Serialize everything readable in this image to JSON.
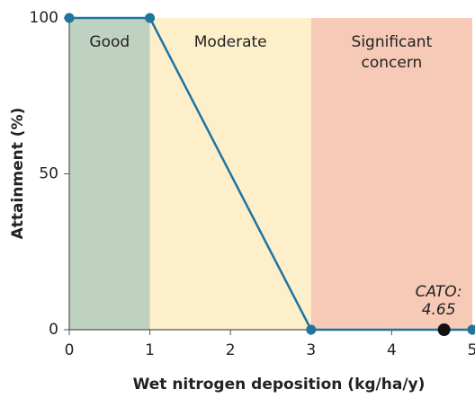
{
  "chart_data": {
    "type": "line",
    "x": [
      0,
      1,
      3,
      5
    ],
    "series": [
      {
        "color": "#1f74a0",
        "values": [
          100,
          100,
          0,
          0
        ]
      }
    ],
    "xlim": [
      0,
      5
    ],
    "ylim": [
      0,
      100
    ],
    "xticks": [
      0,
      1,
      2,
      3,
      4,
      5
    ],
    "yticks": [
      0,
      50,
      100
    ],
    "xlabel": "Wet nitrogen deposition (kg/ha/y)",
    "ylabel": "Attainment (%)",
    "bands": [
      {
        "label": [
          "Good"
        ],
        "from": 0,
        "to": 1,
        "color": "#bfd1c1"
      },
      {
        "label": [
          "Moderate"
        ],
        "from": 1,
        "to": 3,
        "color": "#fcefca"
      },
      {
        "label": [
          "Significant",
          "concern"
        ],
        "from": 3,
        "to": 5,
        "color": "#f7c9b7"
      }
    ],
    "annotations": [
      {
        "label": [
          "CATO:",
          "4.65"
        ],
        "x": 4.65,
        "y": 0,
        "color": "#111111"
      }
    ]
  }
}
